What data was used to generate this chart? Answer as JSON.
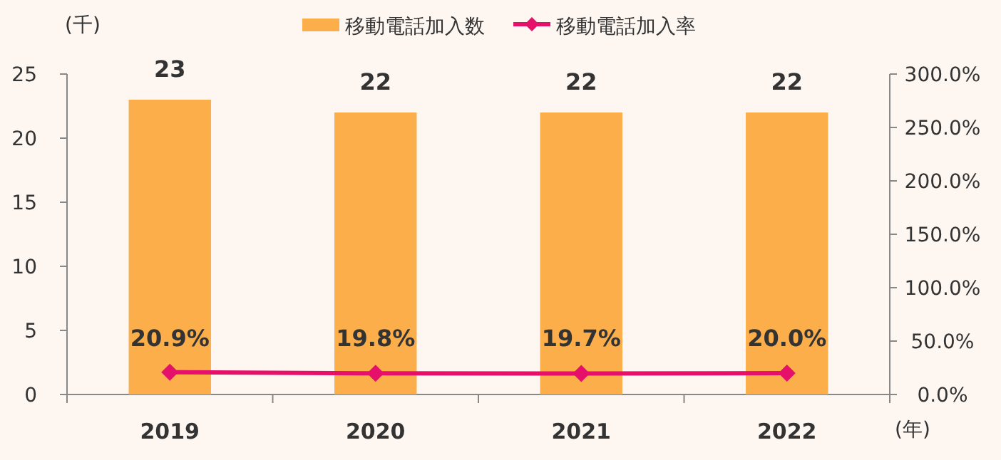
{
  "chart_data": {
    "type": "bar",
    "categories": [
      "2019",
      "2020",
      "2021",
      "2022"
    ],
    "series": [
      {
        "name": "移動電話加入数",
        "color": "#fbae4a",
        "values": [
          23,
          22,
          22,
          22
        ]
      },
      {
        "name": "移動電話加入率",
        "type": "line",
        "axis": "y2",
        "color": "#e4106a",
        "marker": "diamond",
        "values": [
          20.9,
          19.8,
          19.7,
          20.0
        ],
        "value_labels": [
          "20.9%",
          "19.8%",
          "19.7%",
          "20.0%"
        ]
      }
    ],
    "data_labels": true,
    "ylabel": "(千)",
    "xlabel": "(年)",
    "ylim": [
      0,
      25
    ],
    "yticks": [
      0,
      5,
      10,
      15,
      20,
      25
    ],
    "y2lim": [
      0,
      300
    ],
    "y2ticks": [
      {
        "value": 0,
        "label": "0.0%"
      },
      {
        "value": 50,
        "label": "50.0%"
      },
      {
        "value": 100,
        "label": "100.0%"
      },
      {
        "value": 150,
        "label": "150.0%"
      },
      {
        "value": 200,
        "label": "200.0%"
      },
      {
        "value": 250,
        "label": "250.0%"
      },
      {
        "value": 300,
        "label": "300.0%"
      }
    ],
    "grid": false,
    "legend": "top"
  }
}
